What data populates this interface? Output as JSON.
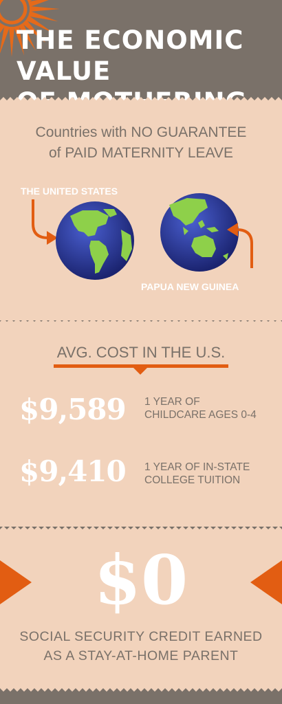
{
  "header": {
    "title_line1": "THE ECONOMIC VALUE",
    "title_line2": "OF MOTHERING"
  },
  "maternity": {
    "heading_line1": "Countries with NO GUARANTEE",
    "heading_line2": "of PAID MATERNITY LEAVE",
    "countries": [
      {
        "label": "THE UNITED STATES"
      },
      {
        "label": "PAPUA NEW GUINEA"
      }
    ]
  },
  "costs": {
    "heading": "AVG. COST IN THE U.S.",
    "items": [
      {
        "amount": "$9,589",
        "desc_line1": "1 YEAR OF",
        "desc_line2": "CHILDCARE AGES 0-4"
      },
      {
        "amount": "$9,410",
        "desc_line1": "1 YEAR OF IN-STATE",
        "desc_line2": "COLLEGE TUITION"
      }
    ]
  },
  "credit": {
    "amount": "$0",
    "line1": "SOCIAL SECURITY CREDIT EARNED",
    "line2": "AS A STAY-AT-HOME PARENT"
  },
  "colors": {
    "header_bg": "#7a7169",
    "panel_bg": "#f2d3bc",
    "accent": "#e25d12",
    "text_gray": "#7a7169",
    "globe_ocean": "#2b3d9a",
    "globe_land": "#8ed04a"
  },
  "icons": [
    "sunburst-icon",
    "globe-americas-icon",
    "globe-oceania-icon",
    "curved-arrow-icon",
    "triangle-arrow-icon"
  ]
}
